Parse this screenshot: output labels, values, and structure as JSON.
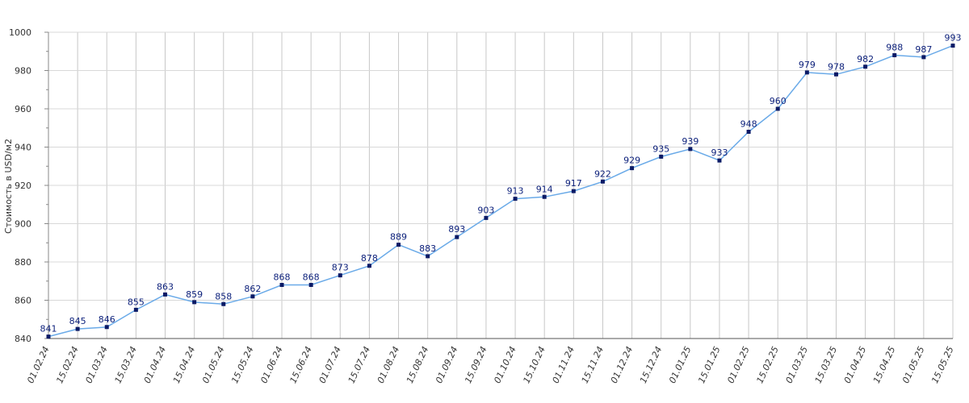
{
  "chart_data": {
    "type": "line",
    "title": "",
    "xlabel": "",
    "ylabel": "Стоимость в USD/м2",
    "ylim": [
      840,
      1000
    ],
    "yticks": [
      840,
      860,
      880,
      900,
      920,
      940,
      960,
      980,
      1000
    ],
    "grid": true,
    "legend": "none",
    "colors": {
      "line": "#6aaae8",
      "marker": "#0b1a66",
      "label": "#0b1f7a",
      "grid": "#d8d8d8",
      "vgrid": "#c8c8c8"
    },
    "categories": [
      "01.02.24",
      "15.02.24",
      "01.03.24",
      "15.03.24",
      "01.04.24",
      "15.04.24",
      "01.05.24",
      "15.05.24",
      "01.06.24",
      "15.06.24",
      "01.07.24",
      "15.07.24",
      "01.08.24",
      "15.08.24",
      "01.09.24",
      "15.09.24",
      "01.10.24",
      "15.10.24",
      "01.11.24",
      "15.11.24",
      "01.12.24",
      "15.12.24",
      "01.01.25",
      "15.01.25",
      "01.02.25",
      "15.02.25",
      "01.03.25",
      "15.03.25",
      "01.04.25",
      "15.04.25",
      "01.05.25",
      "15.05.25"
    ],
    "series": [
      {
        "values": [
          841,
          845,
          846,
          855,
          863,
          859,
          858,
          862,
          868,
          868,
          873,
          878,
          889,
          883,
          893,
          903,
          913,
          914,
          917,
          922,
          929,
          935,
          939,
          933,
          948,
          960,
          979,
          978,
          982,
          988,
          987,
          993
        ]
      }
    ]
  }
}
